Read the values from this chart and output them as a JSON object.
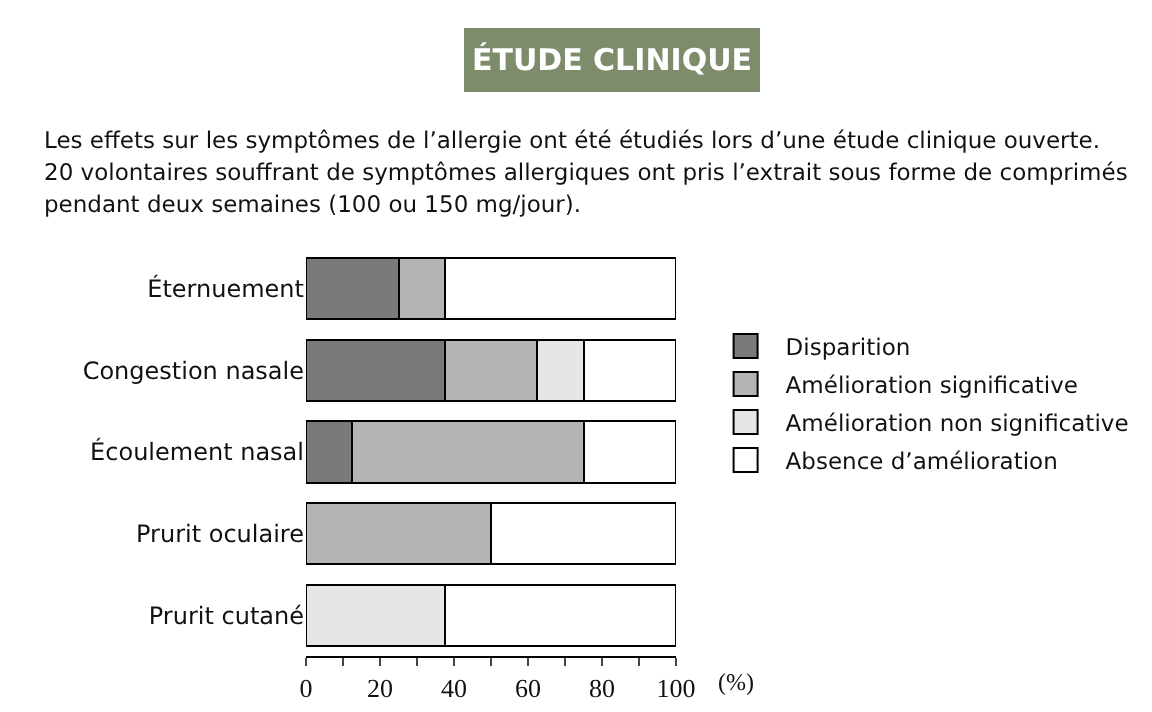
{
  "chart_data": {
    "type": "bar",
    "orientation": "horizontal",
    "stacked": true,
    "title": "ÉTUDE CLINIQUE",
    "subtitle": "Les effets sur les symptômes de l’allergie ont été étudiés lors d’une étude clinique ouverte. 20 volontaires souffrant de symptômes allergiques ont pris l’extrait sous forme de comprimés pendant deux semaines (100 ou 150 mg/jour).",
    "xlabel": "(%)",
    "categories": [
      "Éternuement",
      "Congestion nasale",
      "Écoulement nasal",
      "Prurit oculaire",
      "Prurit cutané"
    ],
    "series": [
      {
        "name": "Disparition",
        "color": "#7a7a7a",
        "values": [
          25,
          37.5,
          12.5,
          0,
          0
        ]
      },
      {
        "name": "Amélioration significative",
        "color": "#b4b4b4",
        "values": [
          12.5,
          25,
          62.5,
          50,
          0
        ]
      },
      {
        "name": "Amélioration non significative",
        "color": "#e6e6e6",
        "values": [
          0,
          12.5,
          0,
          0,
          37.5
        ]
      },
      {
        "name": "Absence d’amélioration",
        "color": "#ffffff",
        "values": [
          62.5,
          25,
          25,
          50,
          62.5
        ]
      }
    ],
    "xlim": [
      0,
      100
    ],
    "xticks": [
      0,
      {
        "value": 10,
        "label": null
      },
      20,
      {
        "value": 30,
        "label": null
      },
      40,
      {
        "value": 50,
        "label": null
      },
      60,
      {
        "value": 70,
        "label": null
      },
      80,
      {
        "value": 90,
        "label": null
      },
      100
    ],
    "grid": false,
    "legend": "right"
  }
}
